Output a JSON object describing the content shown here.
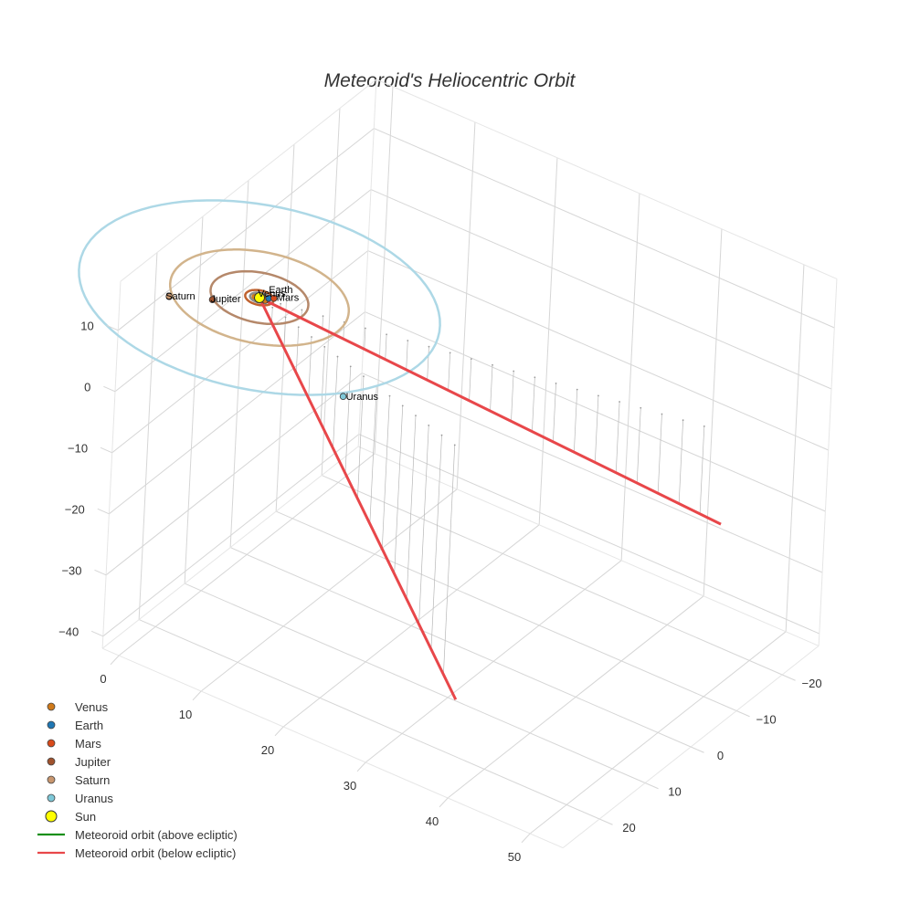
{
  "chart_data": {
    "type": "scatter3d",
    "title": "Meteoroid's Heliocentric Orbit",
    "x_axis": {
      "range": [
        0,
        50
      ],
      "ticks": [
        "0",
        "10",
        "20",
        "30",
        "40",
        "50"
      ]
    },
    "y_axis": {
      "range": [
        -25,
        25
      ],
      "ticks": [
        "−20",
        "−10",
        "0",
        "10",
        "20"
      ]
    },
    "z_axis": {
      "range": [
        -40,
        15
      ],
      "ticks": [
        "10",
        "0",
        "−10",
        "−20",
        "−30",
        "−40"
      ]
    },
    "bodies": [
      {
        "name": "Venus",
        "color": "#d07a1a",
        "x": 0.72,
        "y": 0.05,
        "z": 0,
        "orbit_radius": 0.72
      },
      {
        "name": "Earth",
        "color": "#1f77b4",
        "x": 0.8,
        "y": -0.6,
        "z": 0,
        "orbit_radius": 1.0
      },
      {
        "name": "Mars",
        "color": "#d84a1a",
        "x": 1.2,
        "y": -1.0,
        "z": 0,
        "orbit_radius": 1.52
      },
      {
        "name": "Jupiter",
        "color": "#a0522d",
        "x": -3.5,
        "y": 4.0,
        "z": 0,
        "orbit_radius": 5.2
      },
      {
        "name": "Saturn",
        "color": "#c8966e",
        "x": -7.2,
        "y": 6.8,
        "z": 0,
        "orbit_radius": 9.5
      },
      {
        "name": "Uranus",
        "color": "#7ec8d8",
        "x": 16.4,
        "y": 11.2,
        "z": 0,
        "orbit_radius": 19.2
      },
      {
        "name": "Sun",
        "color": "#ffff00",
        "x": 0,
        "y": 0,
        "z": 0,
        "orbit_radius": 0
      }
    ],
    "orbit_colors": {
      "Venus": "#d07a1a",
      "Earth": "#8c8c8c",
      "Mars": "#c0622f",
      "Jupiter": "#b5886a",
      "Saturn": "#d2b48c",
      "Uranus": "#add8e6"
    },
    "meteoroid_below": {
      "name": "Meteoroid orbit (below ecliptic)",
      "color": "#e8474a",
      "points": [
        {
          "x": 50,
          "y": -12,
          "z": -15
        },
        {
          "x": 0,
          "y": 0,
          "z": 0
        },
        {
          "x": 32,
          "y": 12,
          "z": -40
        }
      ]
    },
    "meteoroid_above": {
      "name": "Meteoroid orbit (above ecliptic)",
      "color": "#1a8f1a",
      "points": []
    },
    "legend": [
      {
        "label": "Venus",
        "kind": "dot",
        "color": "#d07a1a"
      },
      {
        "label": "Earth",
        "kind": "dot",
        "color": "#1f77b4"
      },
      {
        "label": "Mars",
        "kind": "dot",
        "color": "#d84a1a"
      },
      {
        "label": "Jupiter",
        "kind": "dot",
        "color": "#a0522d"
      },
      {
        "label": "Saturn",
        "kind": "dot",
        "color": "#c8966e"
      },
      {
        "label": "Uranus",
        "kind": "dot",
        "color": "#7ec8d8"
      },
      {
        "label": "Sun",
        "kind": "sun",
        "color": "#ffff00"
      },
      {
        "label": "Meteoroid orbit (above ecliptic)",
        "kind": "line",
        "color": "#1a8f1a"
      },
      {
        "label": "Meteoroid orbit (below ecliptic)",
        "kind": "line",
        "color": "#e8474a"
      }
    ],
    "legend_position": "bottom-left"
  }
}
